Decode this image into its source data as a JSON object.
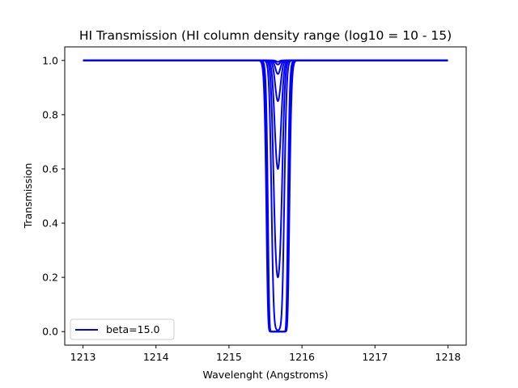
{
  "chart_data": {
    "type": "line",
    "title": "HI Transmission (HI column density range (log10 = 10 - 15)",
    "xlabel": "Wavelenght (Angstroms)",
    "ylabel": "Transmission",
    "xlim": [
      1212.75,
      1218.25
    ],
    "ylim": [
      -0.05,
      1.05
    ],
    "xticks": [
      "1213",
      "1214",
      "1215",
      "1216",
      "1217",
      "1218"
    ],
    "yticks": [
      "0.0",
      "0.2",
      "0.4",
      "0.6",
      "0.8",
      "1.0"
    ],
    "x_range": [
      1213.0,
      1218.0
    ],
    "line_center": 1215.67,
    "color": "#0000ff",
    "legend": {
      "label": "beta=15.0",
      "placement": "lower left"
    },
    "grid": false,
    "series": [
      {
        "min_transmission": 0.995,
        "width": 0.03
      },
      {
        "min_transmission": 0.985,
        "width": 0.04
      },
      {
        "min_transmission": 0.95,
        "width": 0.045
      },
      {
        "min_transmission": 0.85,
        "width": 0.05
      },
      {
        "min_transmission": 0.6,
        "width": 0.055
      },
      {
        "min_transmission": 0.2,
        "width": 0.058
      },
      {
        "min_transmission": 0.005,
        "width": 0.062
      },
      {
        "min_transmission": 0.0,
        "width": 0.066
      },
      {
        "min_transmission": 0.0,
        "width": 0.07
      },
      {
        "min_transmission": 0.0,
        "width": 0.076
      }
    ]
  }
}
